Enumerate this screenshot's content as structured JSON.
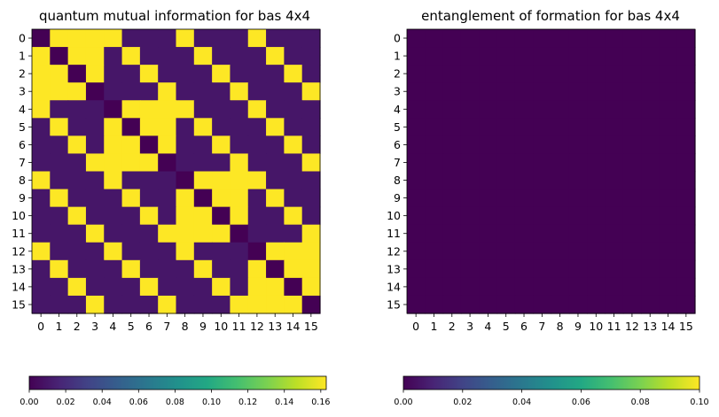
{
  "chart_data": [
    {
      "type": "heatmap",
      "title": "quantum mutual information for bas 4x4",
      "x_ticks": [
        "0",
        "1",
        "2",
        "3",
        "4",
        "5",
        "6",
        "7",
        "8",
        "9",
        "10",
        "11",
        "12",
        "13",
        "14",
        "15"
      ],
      "y_ticks": [
        "0",
        "1",
        "2",
        "3",
        "4",
        "5",
        "6",
        "7",
        "8",
        "9",
        "10",
        "11",
        "12",
        "13",
        "14",
        "15"
      ],
      "colorbar": {
        "min": 0.0,
        "max": 0.163,
        "ticks": [
          "0.00",
          "0.02",
          "0.04",
          "0.06",
          "0.08",
          "0.10",
          "0.12",
          "0.14",
          "0.16"
        ],
        "orientation": "horizontal",
        "colormap": "viridis"
      },
      "values": [
        [
          0.0,
          0.163,
          0.163,
          0.163,
          0.163,
          0.01,
          0.01,
          0.01,
          0.163,
          0.01,
          0.01,
          0.01,
          0.163,
          0.01,
          0.01,
          0.01
        ],
        [
          0.163,
          0.0,
          0.163,
          0.163,
          0.01,
          0.163,
          0.01,
          0.01,
          0.01,
          0.163,
          0.01,
          0.01,
          0.01,
          0.163,
          0.01,
          0.01
        ],
        [
          0.163,
          0.163,
          0.0,
          0.163,
          0.01,
          0.01,
          0.163,
          0.01,
          0.01,
          0.01,
          0.163,
          0.01,
          0.01,
          0.01,
          0.163,
          0.01
        ],
        [
          0.163,
          0.163,
          0.163,
          0.0,
          0.01,
          0.01,
          0.01,
          0.163,
          0.01,
          0.01,
          0.01,
          0.163,
          0.01,
          0.01,
          0.01,
          0.163
        ],
        [
          0.163,
          0.01,
          0.01,
          0.01,
          0.0,
          0.163,
          0.163,
          0.163,
          0.163,
          0.01,
          0.01,
          0.01,
          0.163,
          0.01,
          0.01,
          0.01
        ],
        [
          0.01,
          0.163,
          0.01,
          0.01,
          0.163,
          0.0,
          0.163,
          0.163,
          0.01,
          0.163,
          0.01,
          0.01,
          0.01,
          0.163,
          0.01,
          0.01
        ],
        [
          0.01,
          0.01,
          0.163,
          0.01,
          0.163,
          0.163,
          0.0,
          0.163,
          0.01,
          0.01,
          0.163,
          0.01,
          0.01,
          0.01,
          0.163,
          0.01
        ],
        [
          0.01,
          0.01,
          0.01,
          0.163,
          0.163,
          0.163,
          0.163,
          0.0,
          0.01,
          0.01,
          0.01,
          0.163,
          0.01,
          0.01,
          0.01,
          0.163
        ],
        [
          0.163,
          0.01,
          0.01,
          0.01,
          0.163,
          0.01,
          0.01,
          0.01,
          0.0,
          0.163,
          0.163,
          0.163,
          0.163,
          0.01,
          0.01,
          0.01
        ],
        [
          0.01,
          0.163,
          0.01,
          0.01,
          0.01,
          0.163,
          0.01,
          0.01,
          0.163,
          0.0,
          0.163,
          0.163,
          0.01,
          0.163,
          0.01,
          0.01
        ],
        [
          0.01,
          0.01,
          0.163,
          0.01,
          0.01,
          0.01,
          0.163,
          0.01,
          0.163,
          0.163,
          0.0,
          0.163,
          0.01,
          0.01,
          0.163,
          0.01
        ],
        [
          0.01,
          0.01,
          0.01,
          0.163,
          0.01,
          0.01,
          0.01,
          0.163,
          0.163,
          0.163,
          0.163,
          0.0,
          0.01,
          0.01,
          0.01,
          0.163
        ],
        [
          0.163,
          0.01,
          0.01,
          0.01,
          0.163,
          0.01,
          0.01,
          0.01,
          0.163,
          0.01,
          0.01,
          0.01,
          0.0,
          0.163,
          0.163,
          0.163
        ],
        [
          0.01,
          0.163,
          0.01,
          0.01,
          0.01,
          0.163,
          0.01,
          0.01,
          0.01,
          0.163,
          0.01,
          0.01,
          0.163,
          0.0,
          0.163,
          0.163
        ],
        [
          0.01,
          0.01,
          0.163,
          0.01,
          0.01,
          0.01,
          0.163,
          0.01,
          0.01,
          0.01,
          0.163,
          0.01,
          0.163,
          0.163,
          0.0,
          0.163
        ],
        [
          0.01,
          0.01,
          0.01,
          0.163,
          0.01,
          0.01,
          0.01,
          0.163,
          0.01,
          0.01,
          0.01,
          0.163,
          0.163,
          0.163,
          0.163,
          0.0
        ]
      ]
    },
    {
      "type": "heatmap",
      "title": "entanglement of formation for bas 4x4",
      "x_ticks": [
        "0",
        "1",
        "2",
        "3",
        "4",
        "5",
        "6",
        "7",
        "8",
        "9",
        "10",
        "11",
        "12",
        "13",
        "14",
        "15"
      ],
      "y_ticks": [
        "0",
        "1",
        "2",
        "3",
        "4",
        "5",
        "6",
        "7",
        "8",
        "9",
        "10",
        "11",
        "12",
        "13",
        "14",
        "15"
      ],
      "colorbar": {
        "min": 0.0,
        "max": 0.1,
        "ticks": [
          "0.00",
          "0.02",
          "0.04",
          "0.06",
          "0.08",
          "0.10"
        ],
        "orientation": "horizontal",
        "colormap": "viridis"
      },
      "values": "all zero (16×16)",
      "fill_value": 0.0
    }
  ]
}
